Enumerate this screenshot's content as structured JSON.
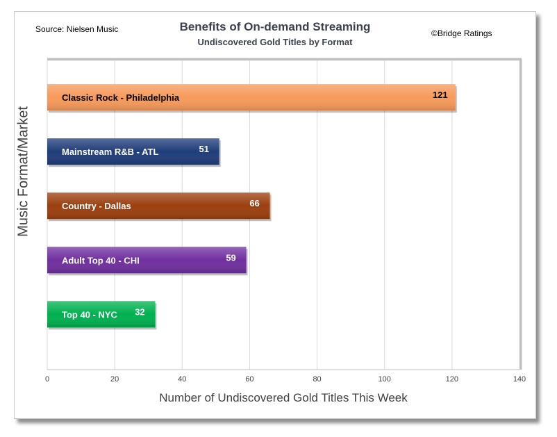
{
  "chart_data": {
    "type": "bar",
    "orientation": "horizontal",
    "title": "Benefits of On-demand Streaming",
    "subtitle": "Undiscovered Gold Titles by Format",
    "source": "Source: Nielsen Music",
    "credit": "©Bridge Ratings",
    "xlabel": "Number of Undiscovered Gold Titles This Week",
    "ylabel": "Music Format/Market",
    "xlim": [
      0,
      140
    ],
    "xticks": [
      "0",
      "20",
      "40",
      "60",
      "80",
      "100",
      "120",
      "140"
    ],
    "grid": true,
    "categories": [
      "Classic Rock - Philadelphia",
      "Mainstream R&B - ATL",
      "Country - Dallas",
      "Adult Top 40 - CHI",
      "Top 40 - NYC"
    ],
    "values": [
      121,
      51,
      66,
      59,
      32
    ],
    "colors": [
      "#f79a5a",
      "#1f3d7a",
      "#9c3f0f",
      "#7030a0",
      "#00b050"
    ]
  }
}
